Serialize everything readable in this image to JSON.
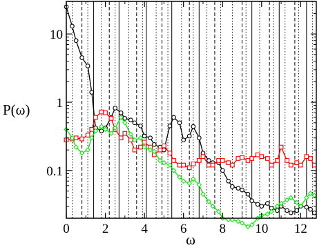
{
  "chart_data": {
    "type": "line",
    "xlabel": "ω",
    "ylabel": "P(ω)",
    "xlim": [
      0,
      12.8
    ],
    "ylim": [
      0.02,
      30
    ],
    "yscale": "log",
    "grid": false,
    "x_tick_labels": [
      "0",
      "2",
      "4",
      "6",
      "8",
      "10",
      "12"
    ],
    "x_tick_values": [
      0,
      2,
      4,
      6,
      8,
      10,
      12
    ],
    "y_tick_labels": [
      "0.1",
      "1",
      "10"
    ],
    "y_tick_values": [
      0.1,
      1,
      10
    ],
    "vertical_lines_solid": [
      1.4,
      2.7,
      4.1,
      5.4,
      6.8,
      9.5,
      10.9,
      12.3
    ],
    "vertical_lines_dashed": [
      0.8,
      2.2,
      3.6,
      4.9,
      6.3,
      7.6,
      9.0,
      10.4,
      11.7
    ],
    "vertical_lines_dotted": [
      0.3,
      1.1,
      1.8,
      2.5,
      3.2,
      3.9,
      4.6,
      5.2,
      5.9,
      6.5,
      7.2,
      7.9,
      8.5,
      9.2,
      9.9,
      10.6,
      11.2,
      11.9,
      12.6
    ],
    "series": [
      {
        "color": "#000000",
        "marker": "circle",
        "x": [
          0.0,
          0.3,
          0.5,
          0.8,
          1.1,
          1.3,
          1.5,
          1.8,
          2.0,
          2.3,
          2.5,
          2.8,
          3.0,
          3.3,
          3.5,
          3.8,
          4.0,
          4.3,
          4.5,
          4.8,
          5.0,
          5.3,
          5.5,
          5.8,
          6.0,
          6.3,
          6.5,
          6.8,
          7.0,
          7.3,
          7.5,
          7.8,
          8.0,
          8.3,
          8.5,
          8.8,
          9.0,
          9.3,
          9.5,
          9.8,
          10.0,
          10.3,
          10.5,
          10.8,
          11.0,
          11.3,
          11.5,
          11.8,
          12.0,
          12.3,
          12.5,
          12.7
        ],
        "y": [
          25,
          13,
          8,
          4.5,
          3.4,
          1.4,
          0.42,
          0.38,
          0.42,
          0.6,
          0.82,
          0.7,
          0.58,
          0.55,
          0.5,
          0.45,
          0.32,
          0.3,
          0.24,
          0.22,
          0.2,
          0.45,
          0.6,
          0.5,
          0.28,
          0.32,
          0.44,
          0.3,
          0.18,
          0.14,
          0.13,
          0.13,
          0.1,
          0.07,
          0.058,
          0.055,
          0.052,
          0.045,
          0.036,
          0.032,
          0.03,
          0.033,
          0.028,
          0.026,
          0.03,
          0.026,
          0.024,
          0.026,
          0.03,
          0.029,
          0.027,
          0.024
        ]
      },
      {
        "color": "#ff0000",
        "marker": "square",
        "x": [
          0.0,
          0.3,
          0.5,
          0.8,
          1.1,
          1.3,
          1.5,
          1.8,
          2.0,
          2.3,
          2.5,
          2.8,
          3.0,
          3.3,
          3.5,
          3.8,
          4.0,
          4.3,
          4.5,
          4.8,
          5.0,
          5.3,
          5.5,
          5.8,
          6.0,
          6.3,
          6.5,
          6.8,
          7.0,
          7.3,
          7.5,
          7.8,
          8.0,
          8.3,
          8.5,
          8.8,
          9.0,
          9.3,
          9.5,
          9.8,
          10.0,
          10.3,
          10.5,
          10.8,
          11.0,
          11.3,
          11.5,
          11.8,
          12.0,
          12.3,
          12.5,
          12.7
        ],
        "y": [
          0.28,
          0.29,
          0.3,
          0.29,
          0.33,
          0.4,
          0.6,
          0.72,
          0.7,
          0.58,
          0.4,
          0.3,
          0.35,
          0.28,
          0.2,
          0.22,
          0.26,
          0.22,
          0.17,
          0.2,
          0.23,
          0.18,
          0.14,
          0.12,
          0.12,
          0.11,
          0.125,
          0.14,
          0.16,
          0.12,
          0.12,
          0.14,
          0.14,
          0.13,
          0.12,
          0.15,
          0.155,
          0.14,
          0.15,
          0.17,
          0.16,
          0.15,
          0.12,
          0.14,
          0.22,
          0.14,
          0.12,
          0.13,
          0.12,
          0.16,
          0.15,
          0.12
        ]
      },
      {
        "color": "#00ee00",
        "marker": "diamond",
        "x": [
          0.0,
          0.3,
          0.5,
          0.8,
          1.1,
          1.3,
          1.5,
          1.8,
          2.0,
          2.3,
          2.5,
          2.8,
          3.0,
          3.3,
          3.5,
          3.8,
          4.0,
          4.3,
          4.5,
          4.8,
          5.0,
          5.3,
          5.5,
          5.8,
          6.0,
          6.3,
          6.5,
          6.8,
          7.0,
          7.3,
          7.5,
          7.8,
          8.0,
          8.3,
          8.5,
          8.8,
          9.0,
          9.3,
          9.5,
          9.8,
          10.0,
          10.3,
          10.5,
          10.8,
          11.0,
          11.3,
          11.5,
          11.8,
          12.0,
          12.3,
          12.5,
          12.7
        ],
        "y": [
          0.4,
          0.3,
          0.22,
          0.18,
          0.2,
          0.3,
          0.38,
          0.44,
          0.4,
          0.35,
          0.42,
          0.6,
          0.5,
          0.34,
          0.28,
          0.3,
          0.22,
          0.2,
          0.19,
          0.14,
          0.13,
          0.12,
          0.1,
          0.08,
          0.07,
          0.065,
          0.075,
          0.062,
          0.045,
          0.035,
          0.03,
          0.025,
          0.02,
          0.019,
          0.019,
          0.018,
          0.017,
          0.015,
          0.016,
          0.02,
          0.022,
          0.023,
          0.025,
          0.03,
          0.033,
          0.037,
          0.04,
          0.034,
          0.03,
          0.04,
          0.046,
          0.043
        ]
      }
    ]
  }
}
